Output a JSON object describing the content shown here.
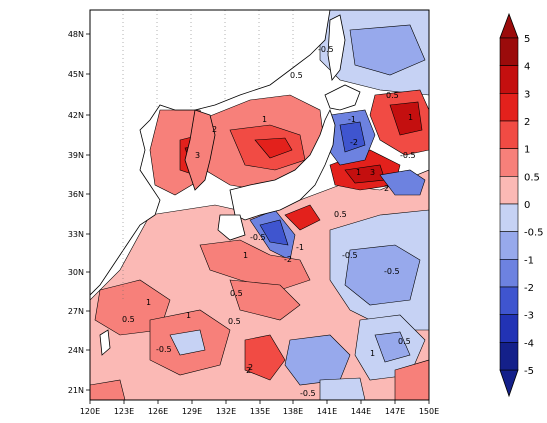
{
  "map": {
    "x_ticks": [
      "120E",
      "123E",
      "126E",
      "129E",
      "132E",
      "135E",
      "138E",
      "141E",
      "144E",
      "147E",
      "150E"
    ],
    "y_ticks": [
      "48N",
      "45N",
      "42N",
      "39N",
      "36N",
      "33N",
      "30N",
      "27N",
      "24N",
      "21N"
    ],
    "contour_labels": [
      "-0.5",
      "0.5",
      "1",
      "2",
      "3",
      "-1",
      "-2",
      "0.5",
      "1",
      "-0.5",
      "2",
      "1",
      "3",
      "-2",
      "-1",
      "-0.5",
      "0.5",
      "1",
      "2",
      "0.5",
      "-0.5",
      "-0.5",
      "1",
      "0.5",
      "2",
      "0.5",
      "-0.5",
      "1",
      "-0.5",
      "0.5",
      "1"
    ]
  },
  "colorbar": {
    "levels": [
      "5",
      "4",
      "3",
      "2",
      "1",
      "0.5",
      "0",
      "-0.5",
      "-1",
      "-2",
      "-3",
      "-4",
      "-5"
    ],
    "colors": [
      "#9b0b0b",
      "#c40f0f",
      "#e3211c",
      "#f14b44",
      "#f7807a",
      "#fbb9b5",
      "#ffffff",
      "#c6d2f4",
      "#97a9ec",
      "#6d82e0",
      "#3f55cf",
      "#2233b5",
      "#14208a"
    ]
  }
}
